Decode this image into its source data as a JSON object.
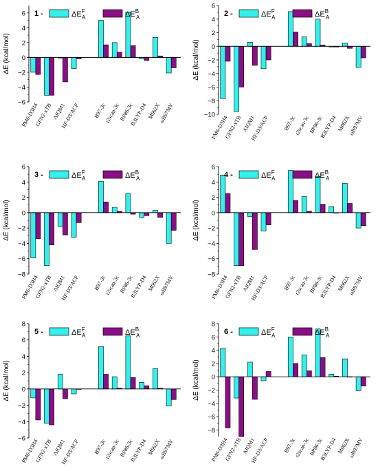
{
  "colors": {
    "fA": "#33f0ec",
    "bA": "#8a0e86",
    "stroke": "#000000"
  },
  "legend": {
    "fA_main": "ΔE",
    "fA_sup": "F",
    "fA_sub": "A",
    "bA_main": "ΔE",
    "bA_sup": "B",
    "bA_sub": "A"
  },
  "chart_data": [
    {
      "type": "bar",
      "panel": "1",
      "ylabel": "ΔE (kcal/mol)",
      "ylim": [
        -6,
        7
      ],
      "yticks": [
        -6,
        -4,
        -2,
        0,
        2,
        4,
        6
      ],
      "categories": [
        "PM6-D3H4",
        "GFN2-xTB",
        "AIQM1",
        "HF-D3/ACP",
        "B97-3c",
        "r2scan-3c",
        "BP86-3c",
        "B3LYP-D4",
        "M062X",
        "ωB97MV"
      ],
      "series": [
        {
          "name": "ΔE^F_A",
          "values": [
            -2.0,
            -5.1,
            -0.1,
            -1.5,
            5.0,
            2.0,
            6.1,
            -0.2,
            2.7,
            -2.1
          ]
        },
        {
          "name": "ΔE^B_A",
          "values": [
            -2.3,
            -5.1,
            -3.3,
            -0.2,
            1.7,
            0.7,
            1.6,
            -0.4,
            0.2,
            -1.4
          ]
        }
      ]
    },
    {
      "type": "bar",
      "panel": "2",
      "ylabel": "ΔE (kcal/mol)",
      "ylim": [
        -10,
        6
      ],
      "yticks": [
        -10,
        -8,
        -6,
        -4,
        -2,
        0,
        2,
        4,
        6
      ],
      "categories": [
        "PM6-D3H4",
        "GFN2-xTB",
        "AIQM1",
        "HF-D3/ACP",
        "B97-3c",
        "r2scan-3c",
        "BP86-3c",
        "B3LYP-D4",
        "M062X",
        "ωB97MV"
      ],
      "series": [
        {
          "name": "ΔE^F_A",
          "values": [
            -7.7,
            -9.6,
            0.6,
            -3.3,
            5.1,
            1.4,
            4.0,
            -0.1,
            0.5,
            -3.1
          ]
        },
        {
          "name": "ΔE^B_A",
          "values": [
            -2.2,
            -6.0,
            -2.8,
            -2.0,
            2.1,
            0.4,
            0.2,
            -0.1,
            -0.3,
            -1.7
          ]
        }
      ]
    },
    {
      "type": "bar",
      "panel": "3",
      "ylabel": "ΔE (kcal/mol)",
      "ylim": [
        -8,
        6
      ],
      "yticks": [
        -8,
        -6,
        -4,
        -2,
        0,
        2,
        4,
        6
      ],
      "categories": [
        "PM6-D3H4",
        "GFN2-xTB",
        "AIQM1",
        "HF-D3/ACP",
        "B97-3c",
        "r2scan-3c",
        "BP86-3c",
        "B3LYP-D4",
        "M062X",
        "ωB97MV"
      ],
      "series": [
        {
          "name": "ΔE^F_A",
          "values": [
            -5.9,
            -6.9,
            -1.8,
            -3.2,
            4.1,
            0.7,
            2.5,
            -0.6,
            0.3,
            -4.0
          ]
        },
        {
          "name": "ΔE^B_A",
          "values": [
            -3.4,
            -4.2,
            -2.9,
            -1.3,
            1.4,
            0.2,
            -0.2,
            -0.4,
            -0.6,
            -2.3
          ]
        }
      ]
    },
    {
      "type": "bar",
      "panel": "4",
      "ylabel": "ΔE (kcal/mol)",
      "ylim": [
        -8,
        6
      ],
      "yticks": [
        -8,
        -6,
        -4,
        -2,
        0,
        2,
        4,
        6
      ],
      "categories": [
        "PM6-D3H4",
        "GFN2-xTB",
        "AIQM1",
        "HF-D3/ACP",
        "B97-3c",
        "r2scan-3c",
        "BP86-3c",
        "B3LYP-D4",
        "M062X",
        "ωB97MV"
      ],
      "series": [
        {
          "name": "ΔE^F_A",
          "values": [
            4.9,
            -6.9,
            -0.5,
            -2.4,
            5.5,
            2.1,
            4.7,
            0.8,
            3.8,
            -2.0
          ]
        },
        {
          "name": "ΔE^B_A",
          "values": [
            2.5,
            -6.9,
            -4.8,
            -1.6,
            1.6,
            0.2,
            1.1,
            0.0,
            1.2,
            -1.7
          ]
        }
      ]
    },
    {
      "type": "bar",
      "panel": "5",
      "ylabel": "ΔE (kcal/mol)",
      "ylim": [
        -6,
        8
      ],
      "yticks": [
        -6,
        -4,
        -2,
        0,
        2,
        4,
        6,
        8
      ],
      "categories": [
        "PM6-D3H4",
        "GFN2-xTB",
        "AIQM1",
        "HF-D3/ACP",
        "B97-3c",
        "r2scan-3c",
        "BP86-3c",
        "B3LYP-D4",
        "M062X",
        "ωB97MV"
      ],
      "series": [
        {
          "name": "ΔE^F_A",
          "values": [
            -1.1,
            -4.2,
            1.8,
            -0.6,
            5.2,
            1.5,
            6.5,
            0.8,
            2.5,
            -2.1
          ]
        },
        {
          "name": "ΔE^B_A",
          "values": [
            -3.8,
            -4.4,
            -1.2,
            0.0,
            1.8,
            0.1,
            1.4,
            0.4,
            0.1,
            -1.3
          ]
        }
      ]
    },
    {
      "type": "bar",
      "panel": "6",
      "ylabel": "ΔE (kcal/mol)",
      "ylim": [
        -9,
        8
      ],
      "yticks": [
        -8,
        -6,
        -4,
        -2,
        0,
        2,
        4,
        6,
        8
      ],
      "categories": [
        "PM6-D3H4",
        "GFN2-xTB",
        "AIQM1",
        "HF-D3/ACP",
        "B97-3c",
        "r2scan-3c",
        "BP86-3c",
        "B3LYP-D4",
        "M062X",
        "ωB97MV"
      ],
      "series": [
        {
          "name": "ΔE^F_A",
          "values": [
            4.3,
            -3.2,
            2.2,
            -0.6,
            6.0,
            3.3,
            7.2,
            0.4,
            2.7,
            -2.1
          ]
        },
        {
          "name": "ΔE^B_A",
          "values": [
            -7.7,
            -9.0,
            -3.4,
            0.8,
            2.0,
            0.9,
            2.9,
            0.1,
            0.0,
            -1.4
          ]
        }
      ]
    }
  ]
}
